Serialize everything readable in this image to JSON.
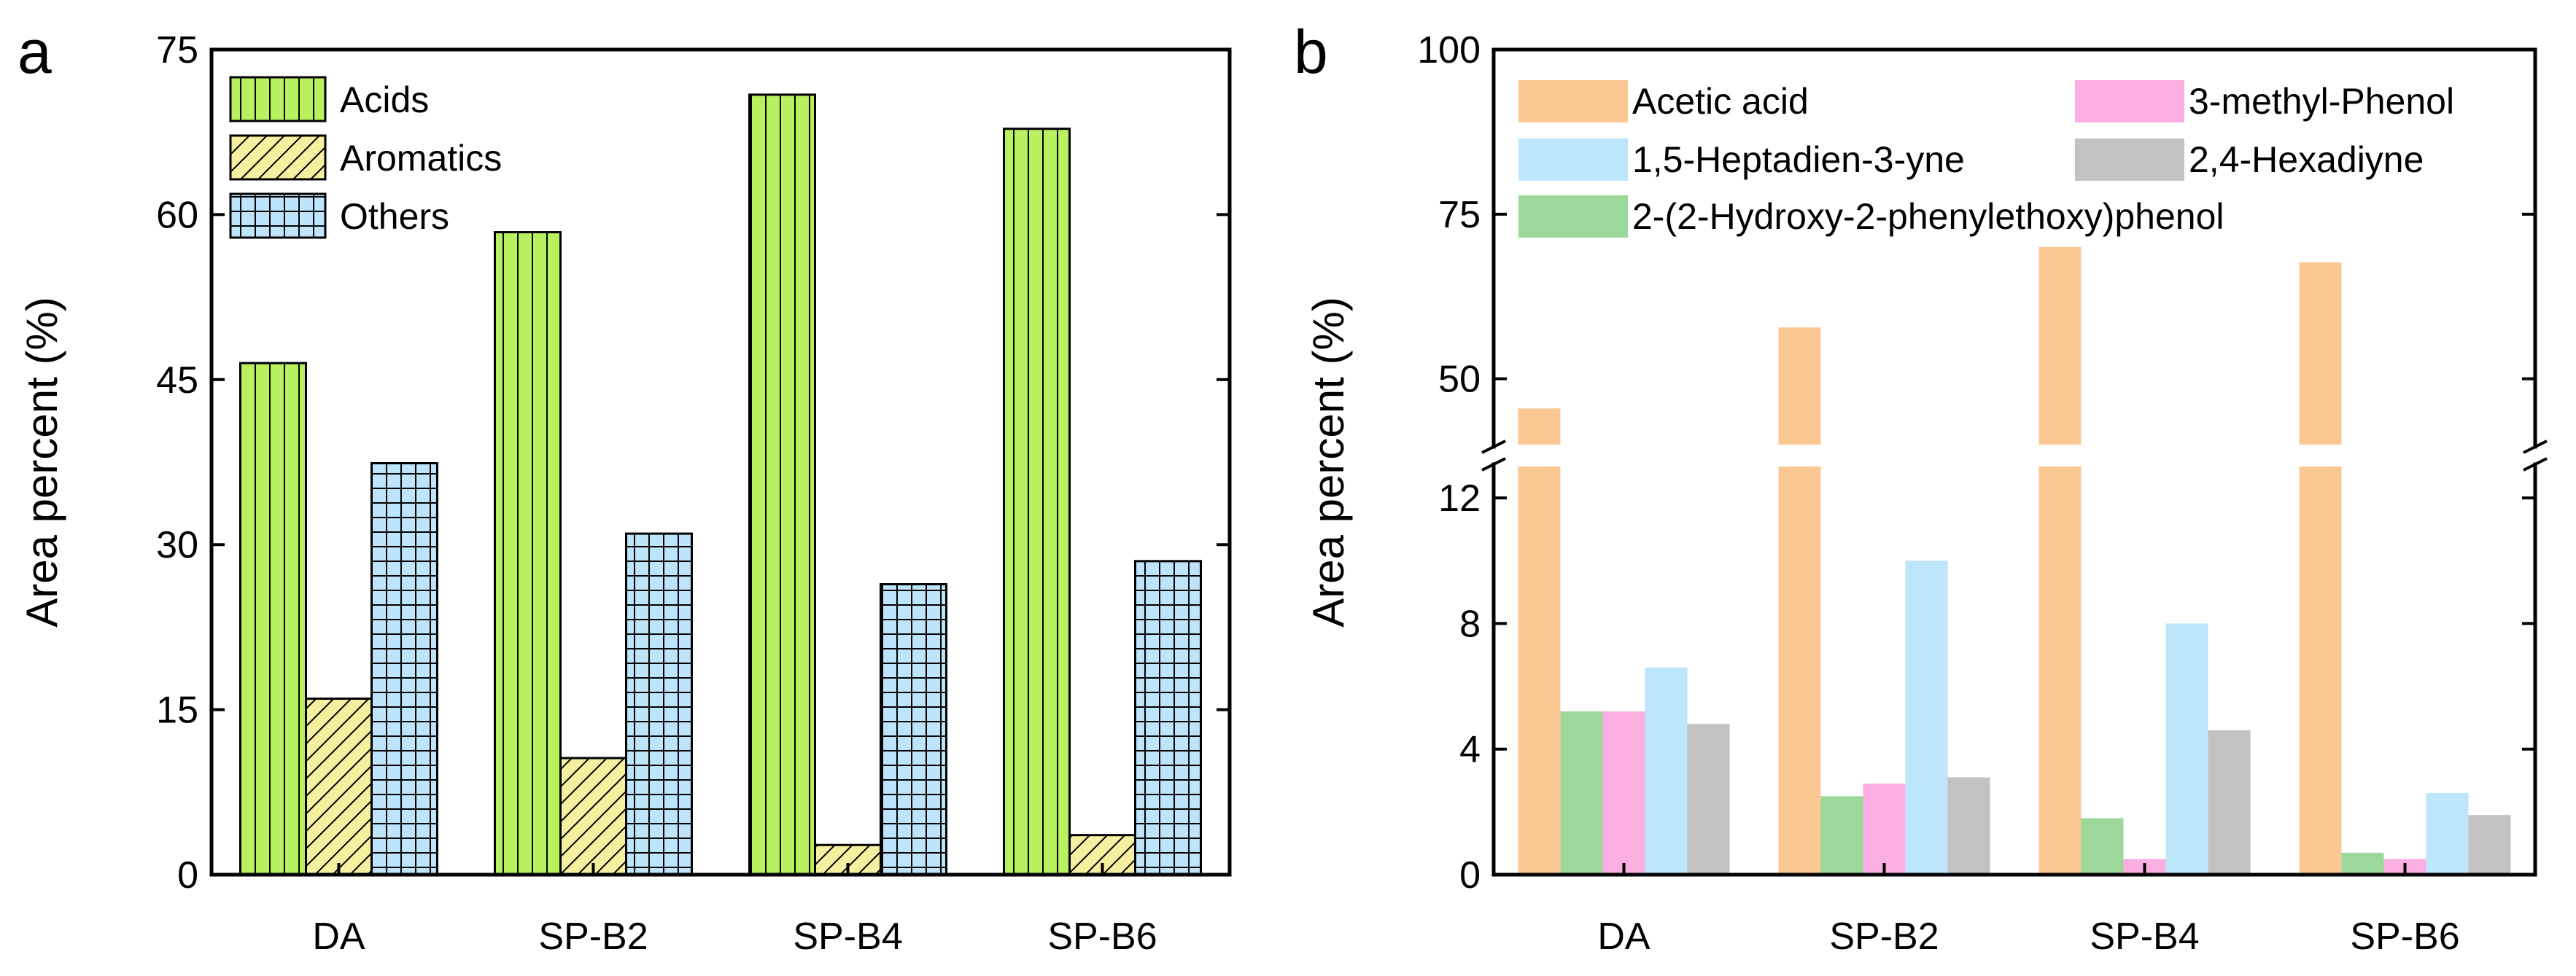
{
  "chart_data": [
    {
      "panel": "a",
      "type": "bar",
      "ylabel": "Area percent (%)",
      "xlabel": "",
      "categories": [
        "DA",
        "SP-B2",
        "SP-B4",
        "SP-B6"
      ],
      "ylim": [
        0,
        75
      ],
      "yticks": [
        0,
        15,
        30,
        45,
        60,
        75
      ],
      "legend": "top-left",
      "grid": false,
      "series": [
        {
          "name": "Acids",
          "color": "#b8f060",
          "pattern": "vertical-lines",
          "values": [
            46.5,
            58.4,
            70.9,
            67.8
          ]
        },
        {
          "name": "Aromatics",
          "color": "#f5f0a0",
          "pattern": "diagonal-lines",
          "values": [
            16.0,
            10.6,
            2.7,
            3.6
          ]
        },
        {
          "name": "Others",
          "color": "#bde4fb",
          "pattern": "grid",
          "values": [
            37.4,
            31.0,
            26.4,
            28.5
          ]
        }
      ]
    },
    {
      "panel": "b",
      "type": "bar",
      "ylabel": "Area percent (%)",
      "xlabel": "",
      "categories": [
        "DA",
        "SP-B2",
        "SP-B4",
        "SP-B6"
      ],
      "axis_break": true,
      "ylim_lower": [
        0,
        13
      ],
      "yticks_lower": [
        0,
        4,
        8,
        12
      ],
      "ylim_upper": [
        40,
        100
      ],
      "yticks_upper": [
        50,
        75,
        100
      ],
      "legend": "top",
      "grid": false,
      "series": [
        {
          "name": "Acetic acid",
          "color": "#fbc893",
          "values": [
            45.5,
            57.8,
            70.0,
            67.7
          ]
        },
        {
          "name": "2-(2-Hydroxy-2-phenylethoxy)phenol",
          "color": "#9bd89a",
          "values": [
            5.2,
            2.5,
            1.8,
            0.7
          ]
        },
        {
          "name": "3-methyl-Phenol",
          "color": "#fbaee0",
          "values": [
            5.2,
            2.9,
            0.5,
            0.5
          ]
        },
        {
          "name": "1,5-Heptadien-3-yne",
          "color": "#bde6fb",
          "values": [
            6.6,
            10.0,
            8.0,
            2.6
          ]
        },
        {
          "name": "2,4-Hexadiyne",
          "color": "#c2c2c2",
          "values": [
            4.8,
            3.1,
            4.6,
            1.9
          ]
        }
      ]
    }
  ]
}
